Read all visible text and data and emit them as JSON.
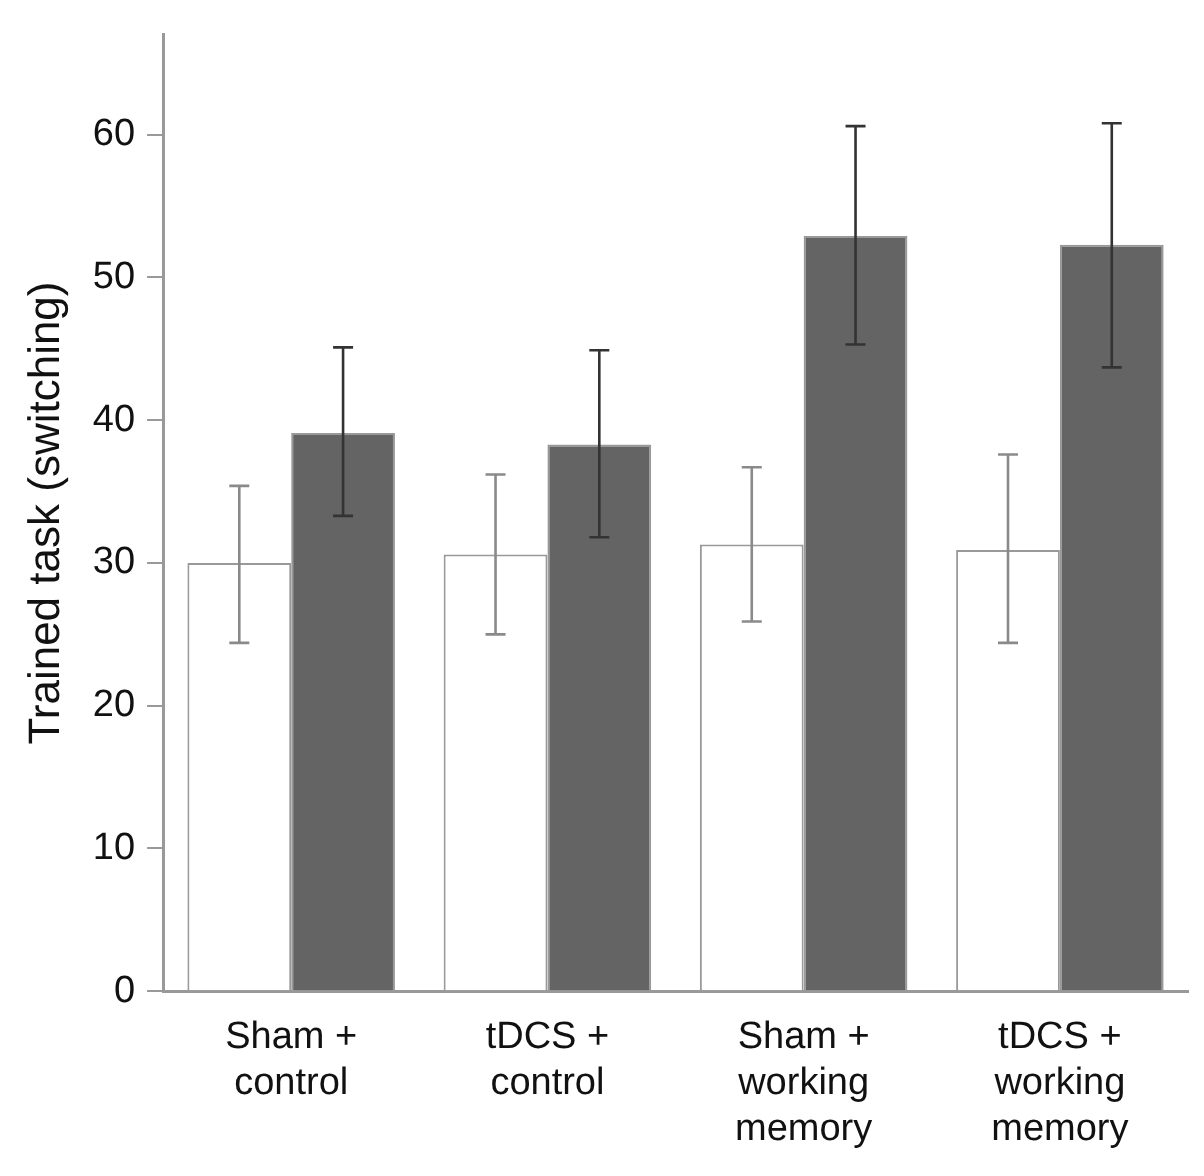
{
  "chart_data": {
    "type": "bar",
    "ylabel": "Trained task (switching)",
    "categories": [
      "Sham +\ncontrol",
      "tDCS +\ncontrol",
      "Sham +\nworking\nmemory",
      "tDCS +\nworking\nmemory"
    ],
    "series": [
      {
        "color": "#ffffff",
        "values": [
          30.0,
          30.6,
          31.3,
          30.9
        ],
        "errors": [
          [
            24.4,
            35.4
          ],
          [
            25.0,
            36.2
          ],
          [
            25.9,
            36.7
          ],
          [
            24.4,
            37.6
          ]
        ]
      },
      {
        "color": "#646464",
        "values": [
          39.1,
          38.3,
          52.9,
          52.3
        ],
        "errors": [
          [
            33.3,
            45.1
          ],
          [
            31.8,
            44.9
          ],
          [
            45.3,
            60.6
          ],
          [
            43.7,
            60.8
          ]
        ]
      }
    ],
    "ylim": [
      0,
      67
    ],
    "yticks": [
      0,
      10,
      20,
      30,
      40,
      50,
      60
    ],
    "grid": false,
    "legend": false
  }
}
